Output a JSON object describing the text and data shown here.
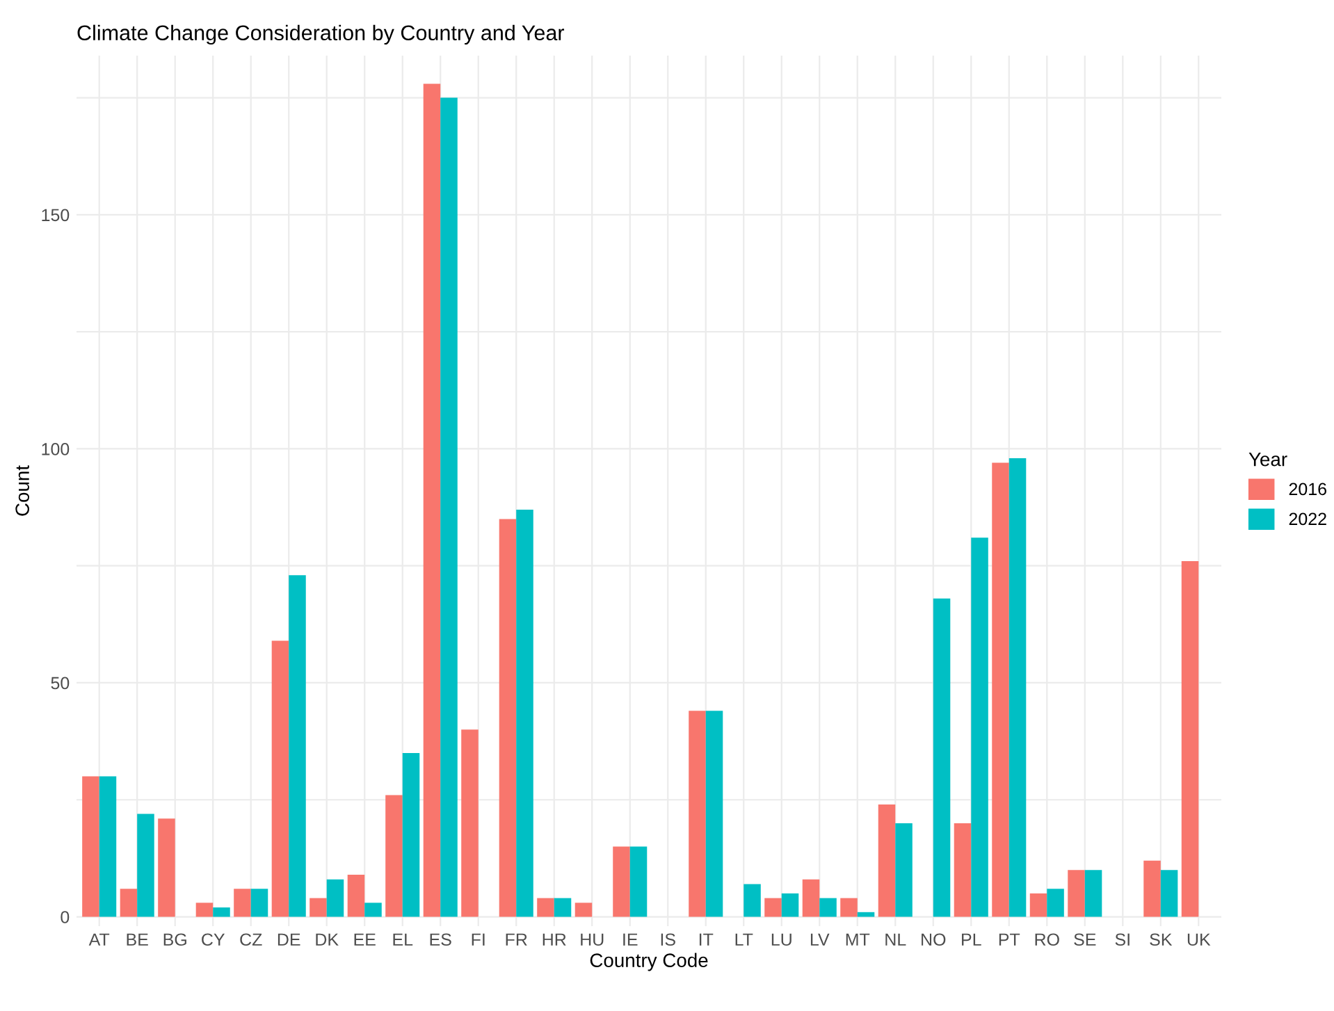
{
  "chart_data": {
    "type": "bar",
    "title": "Climate Change Consideration by Country and Year",
    "xlabel": "Country Code",
    "ylabel": "Count",
    "legend_title": "Year",
    "categories": [
      "AT",
      "BE",
      "BG",
      "CY",
      "CZ",
      "DE",
      "DK",
      "EE",
      "EL",
      "ES",
      "FI",
      "FR",
      "HR",
      "HU",
      "IE",
      "IS",
      "IT",
      "LT",
      "LU",
      "LV",
      "MT",
      "NL",
      "NO",
      "PL",
      "PT",
      "RO",
      "SE",
      "SI",
      "SK",
      "UK"
    ],
    "series": [
      {
        "name": "2016",
        "color": "#f8766d",
        "values": [
          30,
          6,
          21,
          3,
          6,
          59,
          4,
          9,
          26,
          178,
          40,
          85,
          4,
          3,
          15,
          null,
          44,
          null,
          4,
          8,
          4,
          24,
          null,
          20,
          97,
          5,
          10,
          null,
          12,
          76
        ]
      },
      {
        "name": "2022",
        "color": "#00bfc4",
        "values": [
          30,
          22,
          null,
          2,
          6,
          73,
          8,
          3,
          35,
          175,
          null,
          87,
          4,
          null,
          15,
          null,
          44,
          7,
          5,
          4,
          1,
          20,
          68,
          81,
          98,
          6,
          10,
          null,
          10,
          null
        ]
      }
    ],
    "ylim": [
      -2,
      184
    ],
    "yticks": [
      0,
      {
        "value": 25,
        "label": null
      },
      50,
      {
        "value": 75,
        "label": null
      },
      100,
      {
        "value": 125,
        "label": null
      },
      150,
      {
        "value": 175,
        "label": null
      }
    ],
    "grid": true,
    "legend": "right"
  }
}
